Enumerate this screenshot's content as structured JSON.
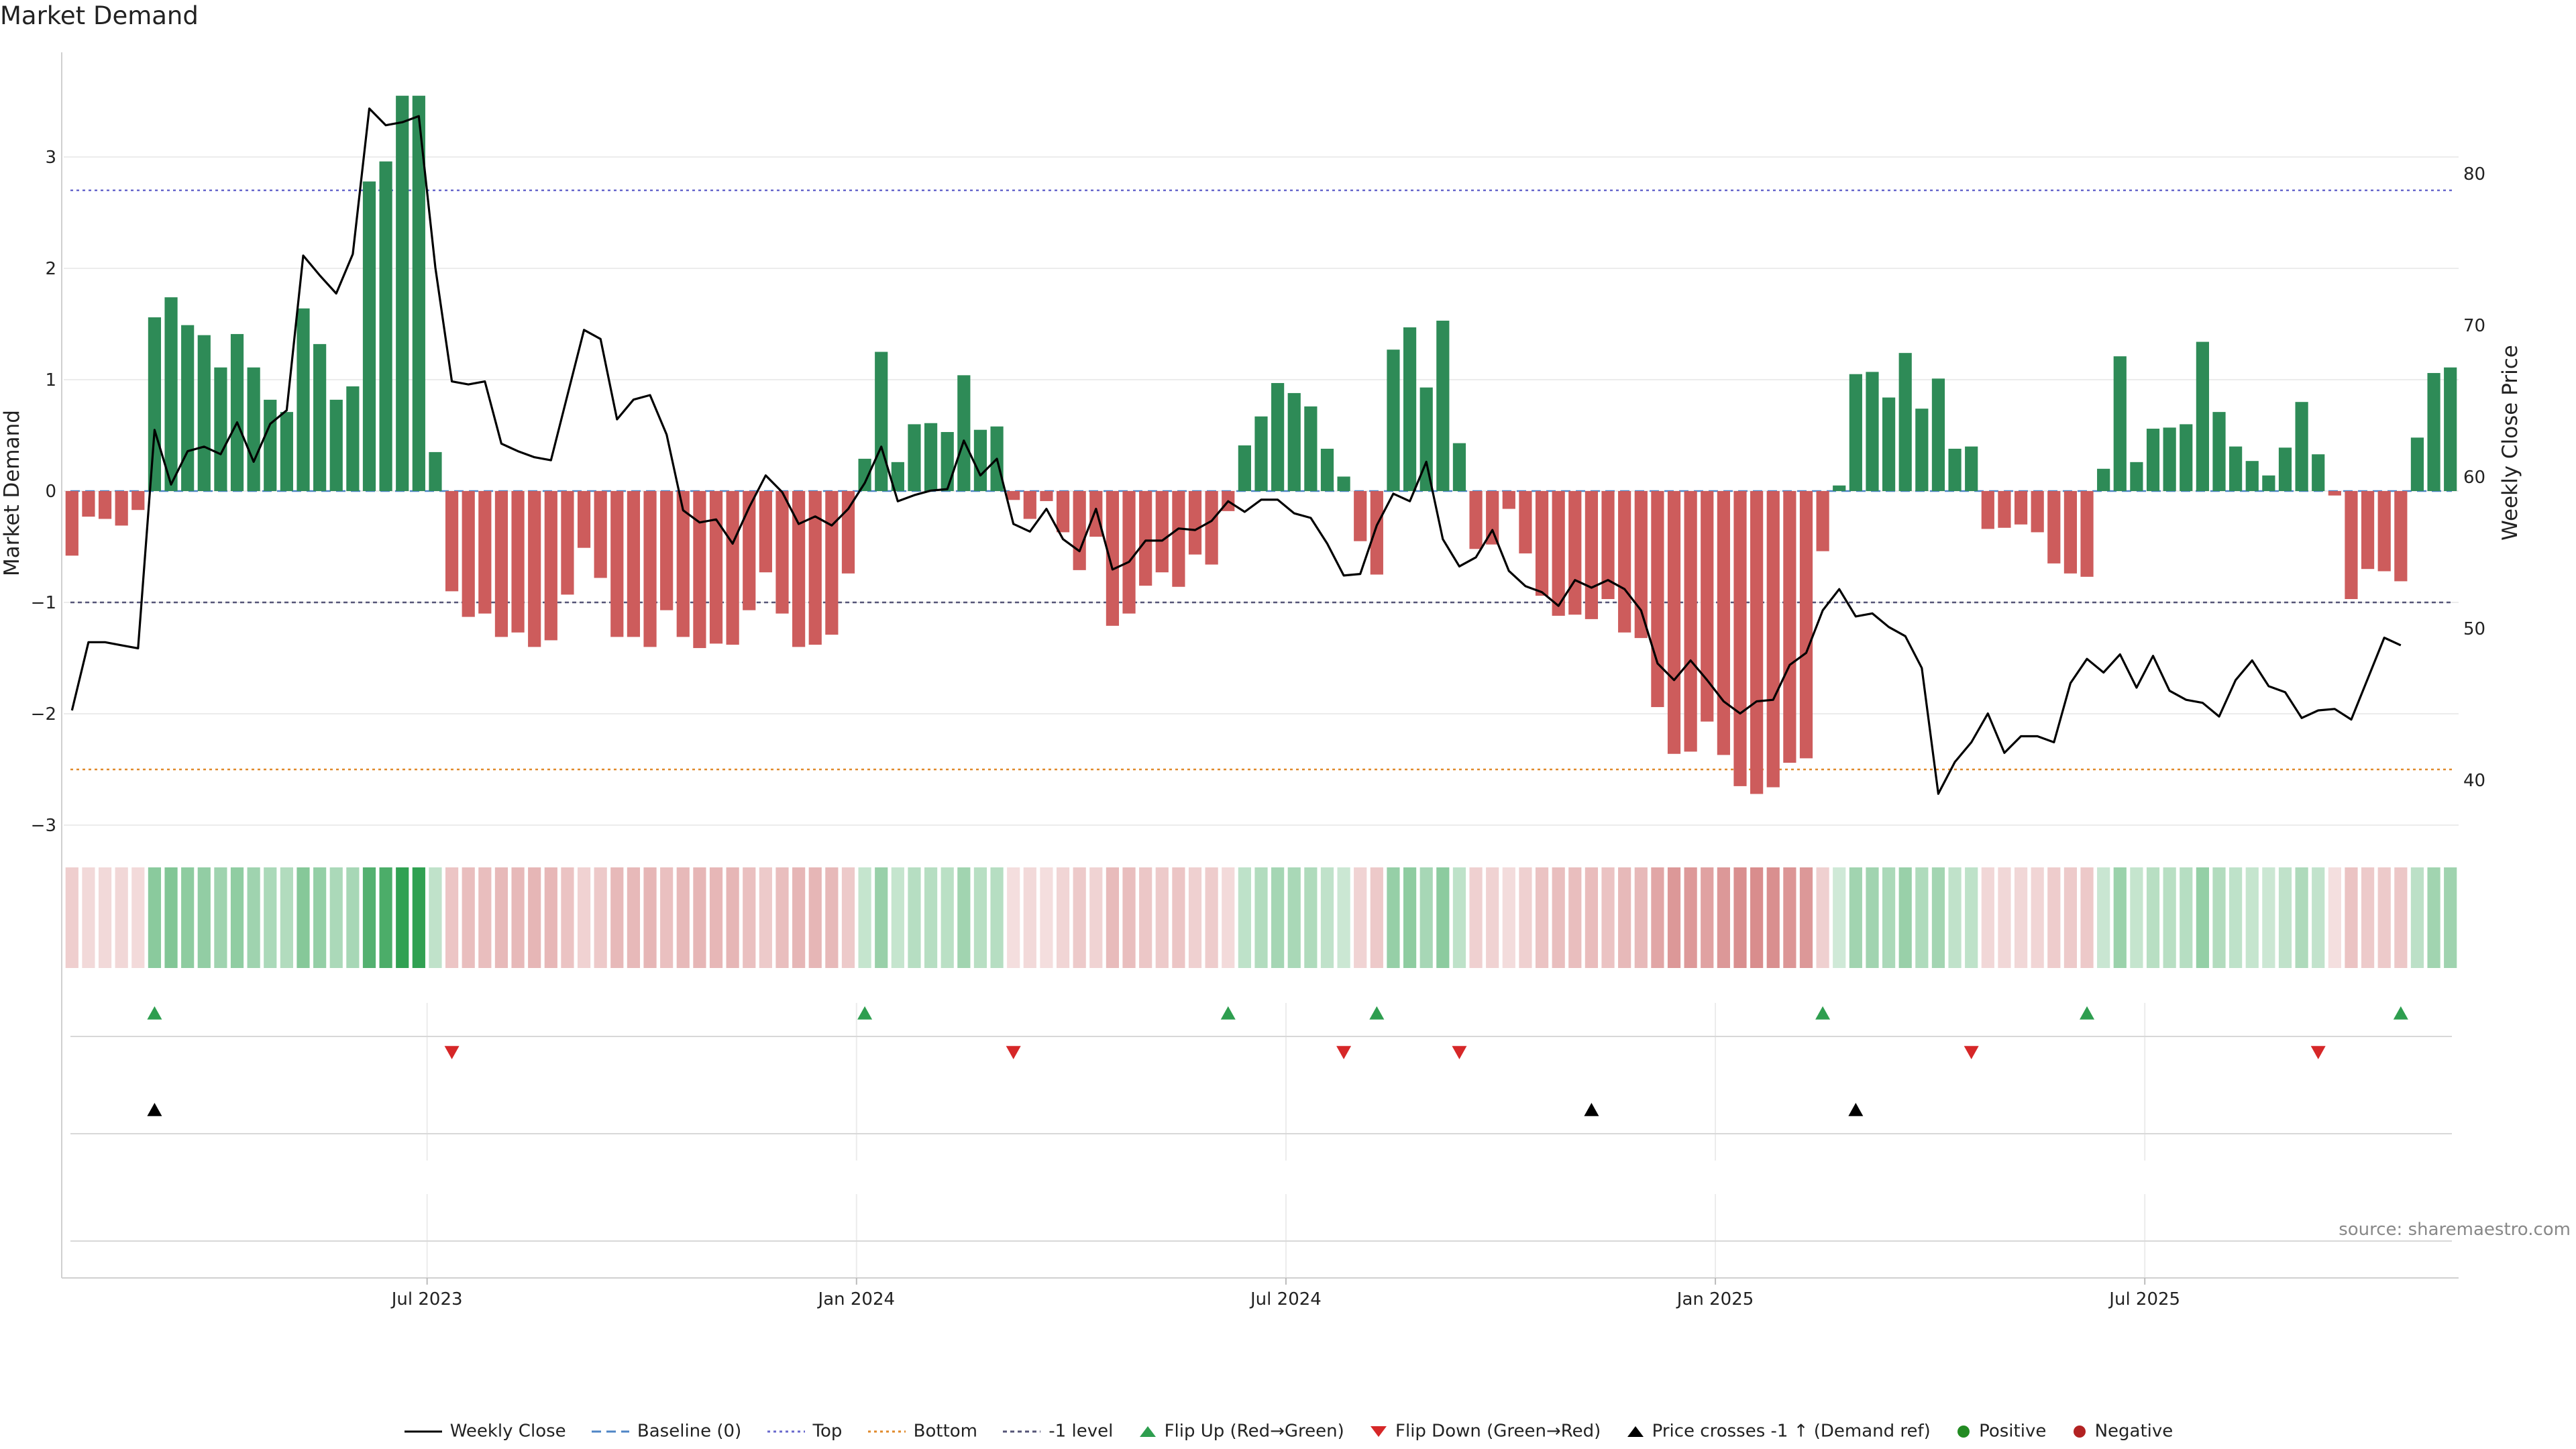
{
  "chart_data": {
    "type": "bar",
    "title": "Market Demand",
    "ylabel": "Market Demand",
    "y2label": "Weekly Close Price",
    "ylim": [
      -3.3,
      3.9
    ],
    "y2lim": [
      37.2,
      86.5
    ],
    "yticks": [
      "3",
      "2",
      "1",
      "0",
      "−1",
      "−2",
      "−3"
    ],
    "y2ticks": [
      "80",
      "70",
      "60",
      "50",
      "40"
    ],
    "xticks": [
      "Jul 2023",
      "Jan 2024",
      "Jul 2024",
      "Jan 2025",
      "Jul 2025"
    ],
    "xtick_weeks": [
      22,
      48,
      74,
      100,
      126
    ],
    "reference_lines": {
      "top": 2.7,
      "bottom": -2.5,
      "minus_one": -1.0,
      "baseline": 0
    },
    "demand": [
      -0.58,
      -0.23,
      -0.25,
      -0.31,
      -0.17,
      1.56,
      1.74,
      1.49,
      1.4,
      1.11,
      1.41,
      1.11,
      0.82,
      0.71,
      1.64,
      1.32,
      0.82,
      0.94,
      2.78,
      2.96,
      3.55,
      3.55,
      0.35,
      -0.9,
      -1.13,
      -1.1,
      -1.31,
      -1.27,
      -1.4,
      -1.34,
      -0.93,
      -0.51,
      -0.78,
      -1.31,
      -1.31,
      -1.4,
      -1.07,
      -1.31,
      -1.41,
      -1.37,
      -1.38,
      -1.07,
      -0.73,
      -1.1,
      -1.4,
      -1.38,
      -1.29,
      -0.74,
      0.29,
      1.25,
      0.26,
      0.6,
      0.61,
      0.53,
      1.04,
      0.55,
      0.58,
      -0.08,
      -0.25,
      -0.09,
      -0.37,
      -0.71,
      -0.41,
      -1.21,
      -1.1,
      -0.85,
      -0.73,
      -0.86,
      -0.57,
      -0.66,
      -0.18,
      0.41,
      0.67,
      0.97,
      0.88,
      0.76,
      0.38,
      0.13,
      -0.45,
      -0.75,
      1.27,
      1.47,
      0.93,
      1.53,
      0.43,
      -0.52,
      -0.48,
      -0.16,
      -0.56,
      -0.94,
      -1.12,
      -1.11,
      -1.15,
      -0.97,
      -1.27,
      -1.32,
      -1.94,
      -2.36,
      -2.34,
      -2.07,
      -2.37,
      -2.65,
      -2.72,
      -2.66,
      -2.44,
      -2.4,
      -0.54,
      0.05,
      1.05,
      1.07,
      0.84,
      1.24,
      0.74,
      1.01,
      0.38,
      0.4,
      -0.34,
      -0.33,
      -0.3,
      -0.37,
      -0.65,
      -0.74,
      -0.77,
      0.2,
      1.21,
      0.26,
      0.56,
      0.57,
      0.6,
      1.34,
      0.71,
      0.4,
      0.27,
      0.14,
      0.39,
      0.8,
      0.33,
      -0.04,
      -0.97,
      -0.7,
      -0.72,
      -0.81,
      0.48,
      1.06,
      1.11
    ],
    "close": [
      44.6,
      49.1,
      49.1,
      48.9,
      48.7,
      63.1,
      59.5,
      61.7,
      62.0,
      61.5,
      63.6,
      61.0,
      63.5,
      64.4,
      74.6,
      73.3,
      72.1,
      74.7,
      84.3,
      83.2,
      83.4,
      83.8,
      73.8,
      66.3,
      66.1,
      66.3,
      62.2,
      61.7,
      61.3,
      61.1,
      65.4,
      69.7,
      69.1,
      63.8,
      65.1,
      65.4,
      62.8,
      57.8,
      57.0,
      57.2,
      55.6,
      58.0,
      60.1,
      59.0,
      56.9,
      57.4,
      56.8,
      57.9,
      59.6,
      62.0,
      58.4,
      58.8,
      59.1,
      59.2,
      62.4,
      60.1,
      61.2,
      56.9,
      56.4,
      57.9,
      55.9,
      55.1,
      57.9,
      53.9,
      54.4,
      55.8,
      55.8,
      56.6,
      56.5,
      57.1,
      58.4,
      57.7,
      58.5,
      58.5,
      57.6,
      57.3,
      55.6,
      53.5,
      53.6,
      56.8,
      58.9,
      58.4,
      61.0,
      55.9,
      54.1,
      54.7,
      56.5,
      53.8,
      52.8,
      52.4,
      51.5,
      53.2,
      52.7,
      53.2,
      52.6,
      51.2,
      47.7,
      46.6,
      47.9,
      46.6,
      45.2,
      44.4,
      45.2,
      45.3,
      47.6,
      48.4,
      51.2,
      52.6,
      50.8,
      51.0,
      50.1,
      49.5,
      47.4,
      39.1,
      41.2,
      42.5,
      44.4,
      41.8,
      42.9,
      42.9,
      42.5,
      46.4,
      48.0,
      47.1,
      48.3,
      46.1,
      48.2,
      45.9,
      45.3,
      45.1,
      44.2,
      46.6,
      47.9,
      46.2,
      45.8,
      44.1,
      44.6,
      44.7,
      44.0,
      46.7,
      49.4,
      48.9
    ],
    "flip_up_weeks": [
      5,
      48,
      70,
      79,
      106,
      122,
      141
    ],
    "flip_down_weeks": [
      23,
      57,
      77,
      84,
      115,
      136
    ],
    "price_cross_weeks": [
      5,
      92,
      108
    ],
    "series_labels": {
      "close": "Weekly Close",
      "baseline": "Baseline (0)",
      "top": "Top",
      "bottom": "Bottom",
      "minus_one": "-1 level",
      "flip_up": "Flip Up (Red→Green)",
      "flip_down": "Flip Down (Green→Red)",
      "price_cross": "Price crosses -1 ↑ (Demand ref)",
      "positive": "Positive",
      "negative": "Negative"
    },
    "source": "source: sharemaestro.com"
  },
  "colors": {
    "positive_bar": "#2e8b57",
    "negative_bar": "#cd5c5c",
    "close_line": "#000000",
    "top_line": "#6a6acd",
    "bottom_line": "#e08a2c",
    "minus_one_line": "#555577",
    "baseline": "#4f86c6",
    "flip_up": "#2e9e4f",
    "flip_down": "#d62728",
    "positive_dot": "#228b22",
    "negative_dot": "#b22222"
  }
}
